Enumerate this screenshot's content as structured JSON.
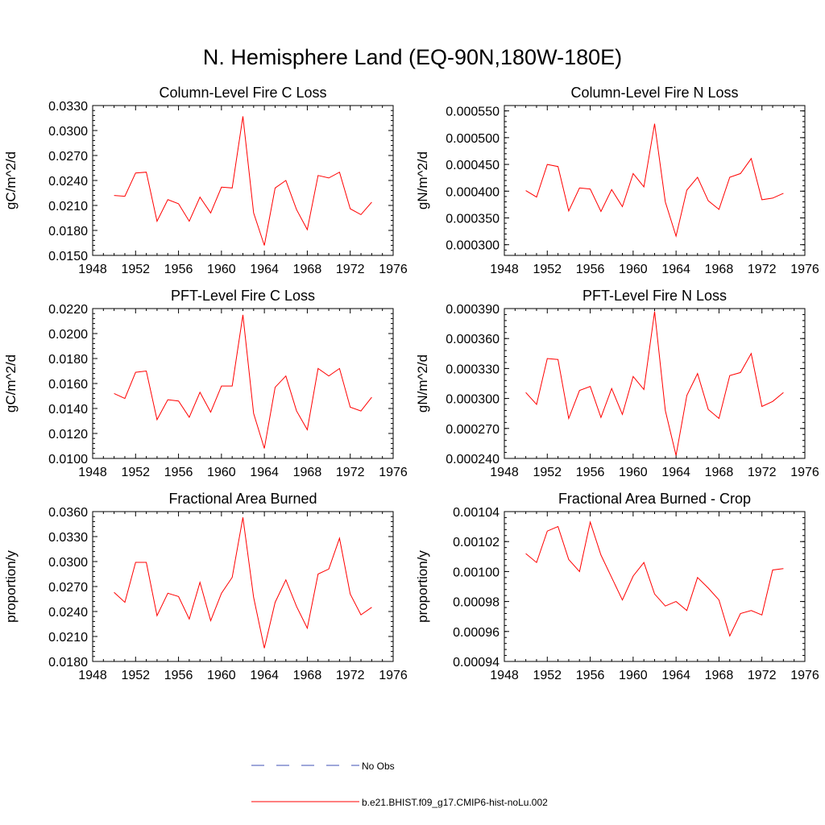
{
  "figure_title": "N. Hemisphere Land (EQ-90N,180W-180E)",
  "legend": {
    "entries": [
      {
        "label": "No Obs",
        "color": "#3f4fb4",
        "style": "dashed"
      },
      {
        "label": "b.e21.BHIST.f09_g17.CMIP6-hist-noLu.002",
        "color": "#ff0000",
        "style": "solid"
      }
    ]
  },
  "chart_data": [
    {
      "type": "line",
      "title": "Column-Level Fire C Loss",
      "xlabel": "",
      "ylabel": "gC/m^2/d",
      "xlim": [
        1948,
        1976
      ],
      "ylim": [
        0.015,
        0.033
      ],
      "xticks": [
        "1948",
        "1952",
        "1956",
        "1960",
        "1964",
        "1968",
        "1972",
        "1976"
      ],
      "yticks": [
        "0.0150",
        "0.0180",
        "0.0210",
        "0.0240",
        "0.0270",
        "0.0300",
        "0.0330"
      ],
      "x": [
        1950,
        1951,
        1952,
        1953,
        1954,
        1955,
        1956,
        1957,
        1958,
        1959,
        1960,
        1961,
        1962,
        1963,
        1964,
        1965,
        1966,
        1967,
        1968,
        1969,
        1970,
        1971,
        1972,
        1973,
        1974
      ],
      "series": [
        {
          "color": "#ff0000",
          "values": [
            0.0222,
            0.0221,
            0.0249,
            0.025,
            0.0191,
            0.0217,
            0.0212,
            0.0191,
            0.022,
            0.0201,
            0.0232,
            0.0231,
            0.0317,
            0.0201,
            0.0162,
            0.0231,
            0.024,
            0.0205,
            0.0181,
            0.0246,
            0.0243,
            0.025,
            0.0206,
            0.0199,
            0.0214
          ]
        }
      ]
    },
    {
      "type": "line",
      "title": "Column-Level Fire N Loss",
      "xlabel": "",
      "ylabel": "gN/m^2/d",
      "xlim": [
        1948,
        1976
      ],
      "ylim": [
        0.00028,
        0.00056
      ],
      "xticks": [
        "1948",
        "1952",
        "1956",
        "1960",
        "1964",
        "1968",
        "1972",
        "1976"
      ],
      "yticks": [
        "0.000300",
        "0.000350",
        "0.000400",
        "0.000450",
        "0.000500",
        "0.000550"
      ],
      "x": [
        1950,
        1951,
        1952,
        1953,
        1954,
        1955,
        1956,
        1957,
        1958,
        1959,
        1960,
        1961,
        1962,
        1963,
        1964,
        1965,
        1966,
        1967,
        1968,
        1969,
        1970,
        1971,
        1972,
        1973,
        1974
      ],
      "series": [
        {
          "color": "#ff0000",
          "values": [
            0.000401,
            0.000389,
            0.00045,
            0.000446,
            0.000363,
            0.000406,
            0.000404,
            0.000362,
            0.000403,
            0.000371,
            0.000433,
            0.000408,
            0.000526,
            0.00038,
            0.000316,
            0.000402,
            0.000426,
            0.000382,
            0.000366,
            0.000426,
            0.000433,
            0.000461,
            0.000384,
            0.000387,
            0.000396
          ]
        }
      ]
    },
    {
      "type": "line",
      "title": "PFT-Level Fire C Loss",
      "xlabel": "",
      "ylabel": "gC/m^2/d",
      "xlim": [
        1948,
        1976
      ],
      "ylim": [
        0.01,
        0.022
      ],
      "xticks": [
        "1948",
        "1952",
        "1956",
        "1960",
        "1964",
        "1968",
        "1972",
        "1976"
      ],
      "yticks": [
        "0.0100",
        "0.0120",
        "0.0140",
        "0.0160",
        "0.0180",
        "0.0200",
        "0.0220"
      ],
      "x": [
        1950,
        1951,
        1952,
        1953,
        1954,
        1955,
        1956,
        1957,
        1958,
        1959,
        1960,
        1961,
        1962,
        1963,
        1964,
        1965,
        1966,
        1967,
        1968,
        1969,
        1970,
        1971,
        1972,
        1973,
        1974
      ],
      "series": [
        {
          "color": "#ff0000",
          "values": [
            0.0152,
            0.0148,
            0.0169,
            0.017,
            0.0131,
            0.0147,
            0.0146,
            0.0133,
            0.0153,
            0.0137,
            0.0158,
            0.0158,
            0.0215,
            0.0136,
            0.0108,
            0.0157,
            0.0166,
            0.0138,
            0.0123,
            0.0172,
            0.0166,
            0.0172,
            0.0141,
            0.0138,
            0.0149
          ]
        }
      ]
    },
    {
      "type": "line",
      "title": "PFT-Level Fire N Loss",
      "xlabel": "",
      "ylabel": "gN/m^2/d",
      "xlim": [
        1948,
        1976
      ],
      "ylim": [
        0.00024,
        0.00039
      ],
      "xticks": [
        "1948",
        "1952",
        "1956",
        "1960",
        "1964",
        "1968",
        "1972",
        "1976"
      ],
      "yticks": [
        "0.000240",
        "0.000270",
        "0.000300",
        "0.000330",
        "0.000360",
        "0.000390"
      ],
      "x": [
        1950,
        1951,
        1952,
        1953,
        1954,
        1955,
        1956,
        1957,
        1958,
        1959,
        1960,
        1961,
        1962,
        1963,
        1964,
        1965,
        1966,
        1967,
        1968,
        1969,
        1970,
        1971,
        1972,
        1973,
        1974
      ],
      "series": [
        {
          "color": "#ff0000",
          "values": [
            0.000306,
            0.000294,
            0.00034,
            0.000339,
            0.00028,
            0.000308,
            0.000312,
            0.000281,
            0.00031,
            0.000284,
            0.000322,
            0.000309,
            0.000387,
            0.000288,
            0.000243,
            0.000303,
            0.000325,
            0.000289,
            0.00028,
            0.000323,
            0.000326,
            0.000345,
            0.000292,
            0.000297,
            0.000306
          ]
        }
      ]
    },
    {
      "type": "line",
      "title": "Fractional Area Burned",
      "xlabel": "",
      "ylabel": "proportion/y",
      "xlim": [
        1948,
        1976
      ],
      "ylim": [
        0.018,
        0.036
      ],
      "xticks": [
        "1948",
        "1952",
        "1956",
        "1960",
        "1964",
        "1968",
        "1972",
        "1976"
      ],
      "yticks": [
        "0.0180",
        "0.0210",
        "0.0240",
        "0.0270",
        "0.0300",
        "0.0330",
        "0.0360"
      ],
      "x": [
        1950,
        1951,
        1952,
        1953,
        1954,
        1955,
        1956,
        1957,
        1958,
        1959,
        1960,
        1961,
        1962,
        1963,
        1964,
        1965,
        1966,
        1967,
        1968,
        1969,
        1970,
        1971,
        1972,
        1973,
        1974
      ],
      "series": [
        {
          "color": "#ff0000",
          "values": [
            0.0263,
            0.0251,
            0.0299,
            0.0299,
            0.0235,
            0.0262,
            0.0258,
            0.0231,
            0.0275,
            0.0229,
            0.0262,
            0.0281,
            0.0353,
            0.0257,
            0.0196,
            0.0251,
            0.0278,
            0.0246,
            0.022,
            0.0285,
            0.0291,
            0.0328,
            0.0261,
            0.0236,
            0.0245
          ]
        }
      ]
    },
    {
      "type": "line",
      "title": "Fractional Area Burned - Crop",
      "xlabel": "",
      "ylabel": "proportion/y",
      "xlim": [
        1948,
        1976
      ],
      "ylim": [
        0.00094,
        0.00104
      ],
      "xticks": [
        "1948",
        "1952",
        "1956",
        "1960",
        "1964",
        "1968",
        "1972",
        "1976"
      ],
      "yticks": [
        "0.00094",
        "0.00096",
        "0.00098",
        "0.00100",
        "0.00102",
        "0.00104"
      ],
      "x": [
        1950,
        1951,
        1952,
        1953,
        1954,
        1955,
        1956,
        1957,
        1958,
        1959,
        1960,
        1961,
        1962,
        1963,
        1964,
        1965,
        1966,
        1967,
        1968,
        1969,
        1970,
        1971,
        1972,
        1973,
        1974
      ],
      "series": [
        {
          "color": "#ff0000",
          "values": [
            0.001012,
            0.001006,
            0.001027,
            0.00103,
            0.001008,
            0.001,
            0.001033,
            0.001011,
            0.000996,
            0.000981,
            0.000997,
            0.001006,
            0.000985,
            0.000977,
            0.00098,
            0.000974,
            0.000996,
            0.000989,
            0.000981,
            0.000957,
            0.000972,
            0.000974,
            0.000971,
            0.001001,
            0.001002
          ]
        }
      ]
    }
  ]
}
